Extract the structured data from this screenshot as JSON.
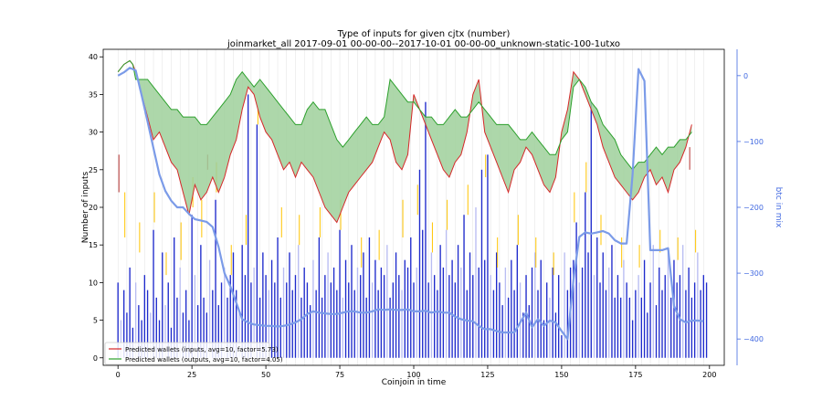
{
  "chart_data": {
    "type": "bar",
    "title": "Type of inputs for given cjtx (number)",
    "subtitle": "joinmarket_all 2017-09-01 00-00-00--2017-10-01 00-00-00_unknown-static-100-1utxo",
    "xlabel": "Coinjoin in time",
    "ylabel": "Number of inputs",
    "y2label": "btc in mix",
    "xlim": [
      -5,
      205
    ],
    "ylim": [
      -1,
      41
    ],
    "y2lim": [
      -440,
      40
    ],
    "xticks": [
      0,
      25,
      50,
      75,
      100,
      125,
      150,
      175,
      200
    ],
    "yticks": [
      0,
      5,
      10,
      15,
      20,
      25,
      30,
      35,
      40
    ],
    "y2ticks": [
      0,
      -100,
      -200,
      -300,
      -400
    ],
    "legend_position": "lower-left",
    "grid": "vertical",
    "colors": {
      "bars": "#1f2bcc",
      "bars_light": "#b9bdf2",
      "inputs_line": "#d62728",
      "outputs_line": "#2ca02c",
      "fill": "#9fd09b",
      "btc_line": "#7b9be8",
      "tick_yellow": "#ffc400",
      "tick_red": "#b5302f",
      "axis_right": "#4169e1"
    },
    "series": [
      {
        "name": "Predicted wallets (inputs, avg=10, factor=5.73)",
        "x": [
          0,
          2,
          4,
          5,
          6,
          8,
          10,
          12,
          14,
          16,
          18,
          20,
          22,
          24,
          26,
          28,
          30,
          32,
          34,
          36,
          38,
          40,
          42,
          44,
          46,
          48,
          50,
          52,
          54,
          56,
          58,
          60,
          62,
          64,
          66,
          68,
          70,
          72,
          74,
          76,
          78,
          80,
          82,
          84,
          86,
          88,
          90,
          92,
          94,
          96,
          98,
          100,
          102,
          104,
          106,
          108,
          110,
          112,
          114,
          116,
          118,
          120,
          122,
          124,
          126,
          128,
          130,
          132,
          134,
          136,
          138,
          140,
          142,
          144,
          146,
          148,
          150,
          152,
          154,
          156,
          158,
          160,
          162,
          164,
          166,
          168,
          170,
          172,
          174,
          176,
          178,
          180,
          182,
          184,
          186,
          188,
          190,
          192,
          194
        ],
        "values": [
          38,
          39,
          39.5,
          39,
          38,
          35,
          32,
          29,
          30,
          28,
          26,
          25,
          22,
          19,
          23,
          21,
          22,
          24,
          22,
          24,
          27,
          29,
          33,
          36,
          35,
          32,
          30,
          29,
          27,
          25,
          26,
          24,
          26,
          25,
          24,
          22,
          20,
          19,
          18,
          20,
          22,
          23,
          24,
          25,
          26,
          28,
          30,
          29,
          26,
          25,
          27,
          35,
          33,
          31,
          29,
          27,
          25,
          24,
          26,
          27,
          30,
          35,
          37,
          30,
          28,
          26,
          24,
          22,
          25,
          26,
          28,
          27,
          25,
          23,
          22,
          24,
          30,
          33,
          38,
          37,
          35,
          33,
          31,
          28,
          26,
          24,
          23,
          22,
          21,
          22,
          24,
          25,
          23,
          24,
          22,
          25,
          26,
          28,
          31
        ]
      },
      {
        "name": "Predicted wallets (outputs, avg=10, factor=4.05)",
        "x": [
          0,
          2,
          4,
          5,
          6,
          8,
          10,
          12,
          14,
          16,
          18,
          20,
          22,
          24,
          26,
          28,
          30,
          32,
          34,
          36,
          38,
          40,
          42,
          44,
          46,
          48,
          50,
          52,
          54,
          56,
          58,
          60,
          62,
          64,
          66,
          68,
          70,
          72,
          74,
          76,
          78,
          80,
          82,
          84,
          86,
          88,
          90,
          92,
          94,
          96,
          98,
          100,
          102,
          104,
          106,
          108,
          110,
          112,
          114,
          116,
          118,
          120,
          122,
          124,
          126,
          128,
          130,
          132,
          134,
          136,
          138,
          140,
          142,
          144,
          146,
          148,
          150,
          152,
          154,
          156,
          158,
          160,
          162,
          164,
          166,
          168,
          170,
          172,
          174,
          176,
          178,
          180,
          182,
          184,
          186,
          188,
          190,
          192,
          194
        ],
        "values": [
          38,
          39,
          39.5,
          39,
          37,
          37,
          37,
          36,
          35,
          34,
          33,
          33,
          32,
          32,
          32,
          31,
          31,
          32,
          33,
          34,
          35,
          37,
          38,
          37,
          36,
          37,
          36,
          35,
          34,
          33,
          32,
          31,
          31,
          33,
          34,
          33,
          33,
          31,
          29,
          28,
          29,
          30,
          31,
          32,
          31,
          31,
          32,
          37,
          36,
          35,
          34,
          34,
          33,
          32,
          32,
          31,
          31,
          32,
          33,
          32,
          32,
          33,
          34,
          33,
          32,
          31,
          31,
          31,
          30,
          29,
          29,
          30,
          29,
          28,
          27,
          27,
          29,
          30,
          36,
          37,
          36,
          34,
          33,
          31,
          30,
          29,
          27,
          26,
          25,
          26,
          26,
          27,
          28,
          27,
          28,
          28,
          29,
          29,
          30
        ]
      },
      {
        "name": "",
        "axis": "right",
        "x": [
          0,
          2,
          4,
          6,
          8,
          10,
          12,
          14,
          16,
          18,
          20,
          22,
          24,
          26,
          28,
          30,
          32,
          34,
          36,
          38,
          40,
          42,
          44,
          46,
          48,
          50,
          52,
          54,
          56,
          58,
          60,
          62,
          64,
          66,
          68,
          70,
          72,
          74,
          76,
          78,
          80,
          82,
          84,
          86,
          88,
          90,
          92,
          94,
          96,
          98,
          100,
          102,
          104,
          106,
          108,
          110,
          112,
          114,
          116,
          118,
          120,
          122,
          124,
          126,
          128,
          130,
          132,
          134,
          136,
          138,
          140,
          142,
          144,
          146,
          148,
          150,
          152,
          154,
          156,
          158,
          160,
          162,
          164,
          166,
          168,
          170,
          172,
          174,
          176,
          178,
          180,
          182,
          184,
          186,
          188,
          190,
          192,
          194,
          196,
          198
        ],
        "values": [
          0,
          5,
          12,
          8,
          -30,
          -70,
          -110,
          -150,
          -175,
          -190,
          -200,
          -200,
          -210,
          -218,
          -220,
          -222,
          -230,
          -260,
          -300,
          -320,
          -345,
          -370,
          -375,
          -378,
          -379,
          -380,
          -380,
          -381,
          -380,
          -378,
          -375,
          -370,
          -362,
          -358,
          -360,
          -361,
          -362,
          -362,
          -360,
          -358,
          -358,
          -360,
          -360,
          -358,
          -355,
          -356,
          -355,
          -356,
          -356,
          -355,
          -358,
          -358,
          -357,
          -360,
          -358,
          -360,
          -360,
          -366,
          -370,
          -372,
          -373,
          -380,
          -385,
          -385,
          -388,
          -390,
          -390,
          -390,
          -375,
          -360,
          -382,
          -370,
          -380,
          -372,
          -375,
          -388,
          -400,
          -310,
          -245,
          -238,
          -240,
          -238,
          -236,
          -240,
          -250,
          -255,
          -255,
          -150,
          10,
          -8,
          -265,
          -265,
          -265,
          -262,
          -350,
          -370,
          -375,
          -372,
          -372,
          -373
        ],
        "visible_until": 176
      }
    ],
    "bars": {
      "x": [
        0,
        1,
        2,
        3,
        4,
        5,
        6,
        7,
        8,
        9,
        10,
        11,
        12,
        13,
        14,
        15,
        16,
        17,
        18,
        19,
        20,
        21,
        22,
        23,
        24,
        25,
        26,
        27,
        28,
        29,
        30,
        31,
        32,
        33,
        34,
        35,
        36,
        37,
        38,
        39,
        40,
        41,
        42,
        43,
        44,
        45,
        46,
        47,
        48,
        49,
        50,
        51,
        52,
        53,
        54,
        55,
        56,
        57,
        58,
        59,
        60,
        61,
        62,
        63,
        64,
        65,
        66,
        67,
        68,
        69,
        70,
        71,
        72,
        73,
        74,
        75,
        76,
        77,
        78,
        79,
        80,
        81,
        82,
        83,
        84,
        85,
        86,
        87,
        88,
        89,
        90,
        91,
        92,
        93,
        94,
        95,
        96,
        97,
        98,
        99,
        100,
        101,
        102,
        103,
        104,
        105,
        106,
        107,
        108,
        109,
        110,
        111,
        112,
        113,
        114,
        115,
        116,
        117,
        118,
        119,
        120,
        121,
        122,
        123,
        124,
        125,
        126,
        127,
        128,
        129,
        130,
        131,
        132,
        133,
        134,
        135,
        136,
        137,
        138,
        139,
        140,
        141,
        142,
        143,
        144,
        145,
        146,
        147,
        148,
        149,
        150,
        151,
        152,
        153,
        154,
        155,
        156,
        157,
        158,
        159,
        160,
        161,
        162,
        163,
        164,
        165,
        166,
        167,
        168,
        169,
        170,
        171,
        172,
        173,
        174,
        175,
        176,
        177,
        178,
        179,
        180,
        181,
        182,
        183,
        184,
        185,
        186,
        187,
        188,
        189,
        190,
        191,
        192,
        193,
        194,
        195,
        196,
        197,
        198,
        199
      ],
      "values": [
        10,
        5,
        9,
        6,
        12,
        4,
        10,
        7,
        5,
        11,
        9,
        6,
        17,
        8,
        5,
        14,
        7,
        10,
        4,
        16,
        8,
        12,
        6,
        9,
        5,
        19,
        11,
        7,
        15,
        8,
        6,
        13,
        9,
        21,
        7,
        10,
        12,
        8,
        11,
        14,
        9,
        6,
        15,
        11,
        35,
        10,
        12,
        31,
        8,
        14,
        11,
        9,
        13,
        10,
        16,
        8,
        12,
        10,
        14,
        9,
        11,
        15,
        8,
        12,
        10,
        7,
        13,
        9,
        16,
        8,
        11,
        14,
        10,
        12,
        9,
        17,
        8,
        13,
        10,
        15,
        9,
        12,
        11,
        14,
        8,
        16,
        10,
        13,
        9,
        12,
        11,
        15,
        8,
        10,
        14,
        11,
        9,
        13,
        12,
        16,
        10,
        12,
        25,
        17,
        34,
        10,
        14,
        11,
        9,
        15,
        12,
        17,
        11,
        13,
        10,
        15,
        12,
        19,
        9,
        14,
        11,
        20,
        12,
        25,
        13,
        27,
        11,
        9,
        14,
        10,
        7,
        12,
        8,
        13,
        9,
        15,
        10,
        6,
        11,
        7,
        12,
        14,
        9,
        13,
        5,
        10,
        8,
        12,
        6,
        11,
        3,
        14,
        9,
        12,
        13,
        18,
        10,
        12,
        22,
        14,
        34,
        11,
        16,
        10,
        14,
        9,
        12,
        15,
        8,
        11,
        8,
        13,
        10,
        8,
        5,
        9,
        11,
        8,
        13,
        6,
        10,
        15,
        7,
        12,
        9,
        11,
        14,
        8,
        13,
        10,
        11,
        15,
        9,
        12,
        8,
        10,
        14,
        9,
        11,
        10
      ]
    },
    "thin_ticks": [
      {
        "x": 0,
        "y0": 22,
        "y1": 27,
        "color": "red"
      },
      {
        "x": 30,
        "y0": 25,
        "y1": 27,
        "color": "red"
      },
      {
        "x": 193,
        "y0": 25,
        "y1": 28,
        "color": "red"
      },
      {
        "x": 2,
        "y0": 16,
        "y1": 22,
        "color": "yellow"
      },
      {
        "x": 7,
        "y0": 14,
        "y1": 18,
        "color": "yellow"
      },
      {
        "x": 12,
        "y0": 18,
        "y1": 22,
        "color": "yellow"
      },
      {
        "x": 16,
        "y0": 11,
        "y1": 14,
        "color": "yellow"
      },
      {
        "x": 21,
        "y0": 13,
        "y1": 18,
        "color": "yellow"
      },
      {
        "x": 25,
        "y0": 20,
        "y1": 24,
        "color": "yellow"
      },
      {
        "x": 28,
        "y0": 16,
        "y1": 21,
        "color": "yellow"
      },
      {
        "x": 33,
        "y0": 22,
        "y1": 26,
        "color": "yellow"
      },
      {
        "x": 38,
        "y0": 11,
        "y1": 15,
        "color": "yellow"
      },
      {
        "x": 43,
        "y0": 15,
        "y1": 19,
        "color": "yellow"
      },
      {
        "x": 47,
        "y0": 31,
        "y1": 33,
        "color": "yellow"
      },
      {
        "x": 55,
        "y0": 16,
        "y1": 20,
        "color": "yellow"
      },
      {
        "x": 61,
        "y0": 15,
        "y1": 19,
        "color": "yellow"
      },
      {
        "x": 68,
        "y0": 16,
        "y1": 20,
        "color": "yellow"
      },
      {
        "x": 75,
        "y0": 17,
        "y1": 21,
        "color": "yellow"
      },
      {
        "x": 82,
        "y0": 12,
        "y1": 16,
        "color": "yellow"
      },
      {
        "x": 88,
        "y0": 13,
        "y1": 17,
        "color": "yellow"
      },
      {
        "x": 96,
        "y0": 16,
        "y1": 21,
        "color": "yellow"
      },
      {
        "x": 101,
        "y0": 19,
        "y1": 23,
        "color": "yellow"
      },
      {
        "x": 106,
        "y0": 14,
        "y1": 18,
        "color": "yellow"
      },
      {
        "x": 111,
        "y0": 17,
        "y1": 21,
        "color": "yellow"
      },
      {
        "x": 118,
        "y0": 19,
        "y1": 23,
        "color": "yellow"
      },
      {
        "x": 124,
        "y0": 24,
        "y1": 27,
        "color": "yellow"
      },
      {
        "x": 128,
        "y0": 12,
        "y1": 16,
        "color": "yellow"
      },
      {
        "x": 135,
        "y0": 15,
        "y1": 19,
        "color": "yellow"
      },
      {
        "x": 141,
        "y0": 12,
        "y1": 16,
        "color": "yellow"
      },
      {
        "x": 147,
        "y0": 11,
        "y1": 14,
        "color": "yellow"
      },
      {
        "x": 154,
        "y0": 18,
        "y1": 22,
        "color": "yellow"
      },
      {
        "x": 158,
        "y0": 22,
        "y1": 26,
        "color": "yellow"
      },
      {
        "x": 163,
        "y0": 15,
        "y1": 19,
        "color": "yellow"
      },
      {
        "x": 170,
        "y0": 12,
        "y1": 16,
        "color": "yellow"
      },
      {
        "x": 176,
        "y0": 12,
        "y1": 15,
        "color": "yellow"
      },
      {
        "x": 183,
        "y0": 14,
        "y1": 17,
        "color": "yellow"
      },
      {
        "x": 189,
        "y0": 13,
        "y1": 16,
        "color": "yellow"
      },
      {
        "x": 195,
        "y0": 14,
        "y1": 17,
        "color": "yellow"
      }
    ]
  }
}
